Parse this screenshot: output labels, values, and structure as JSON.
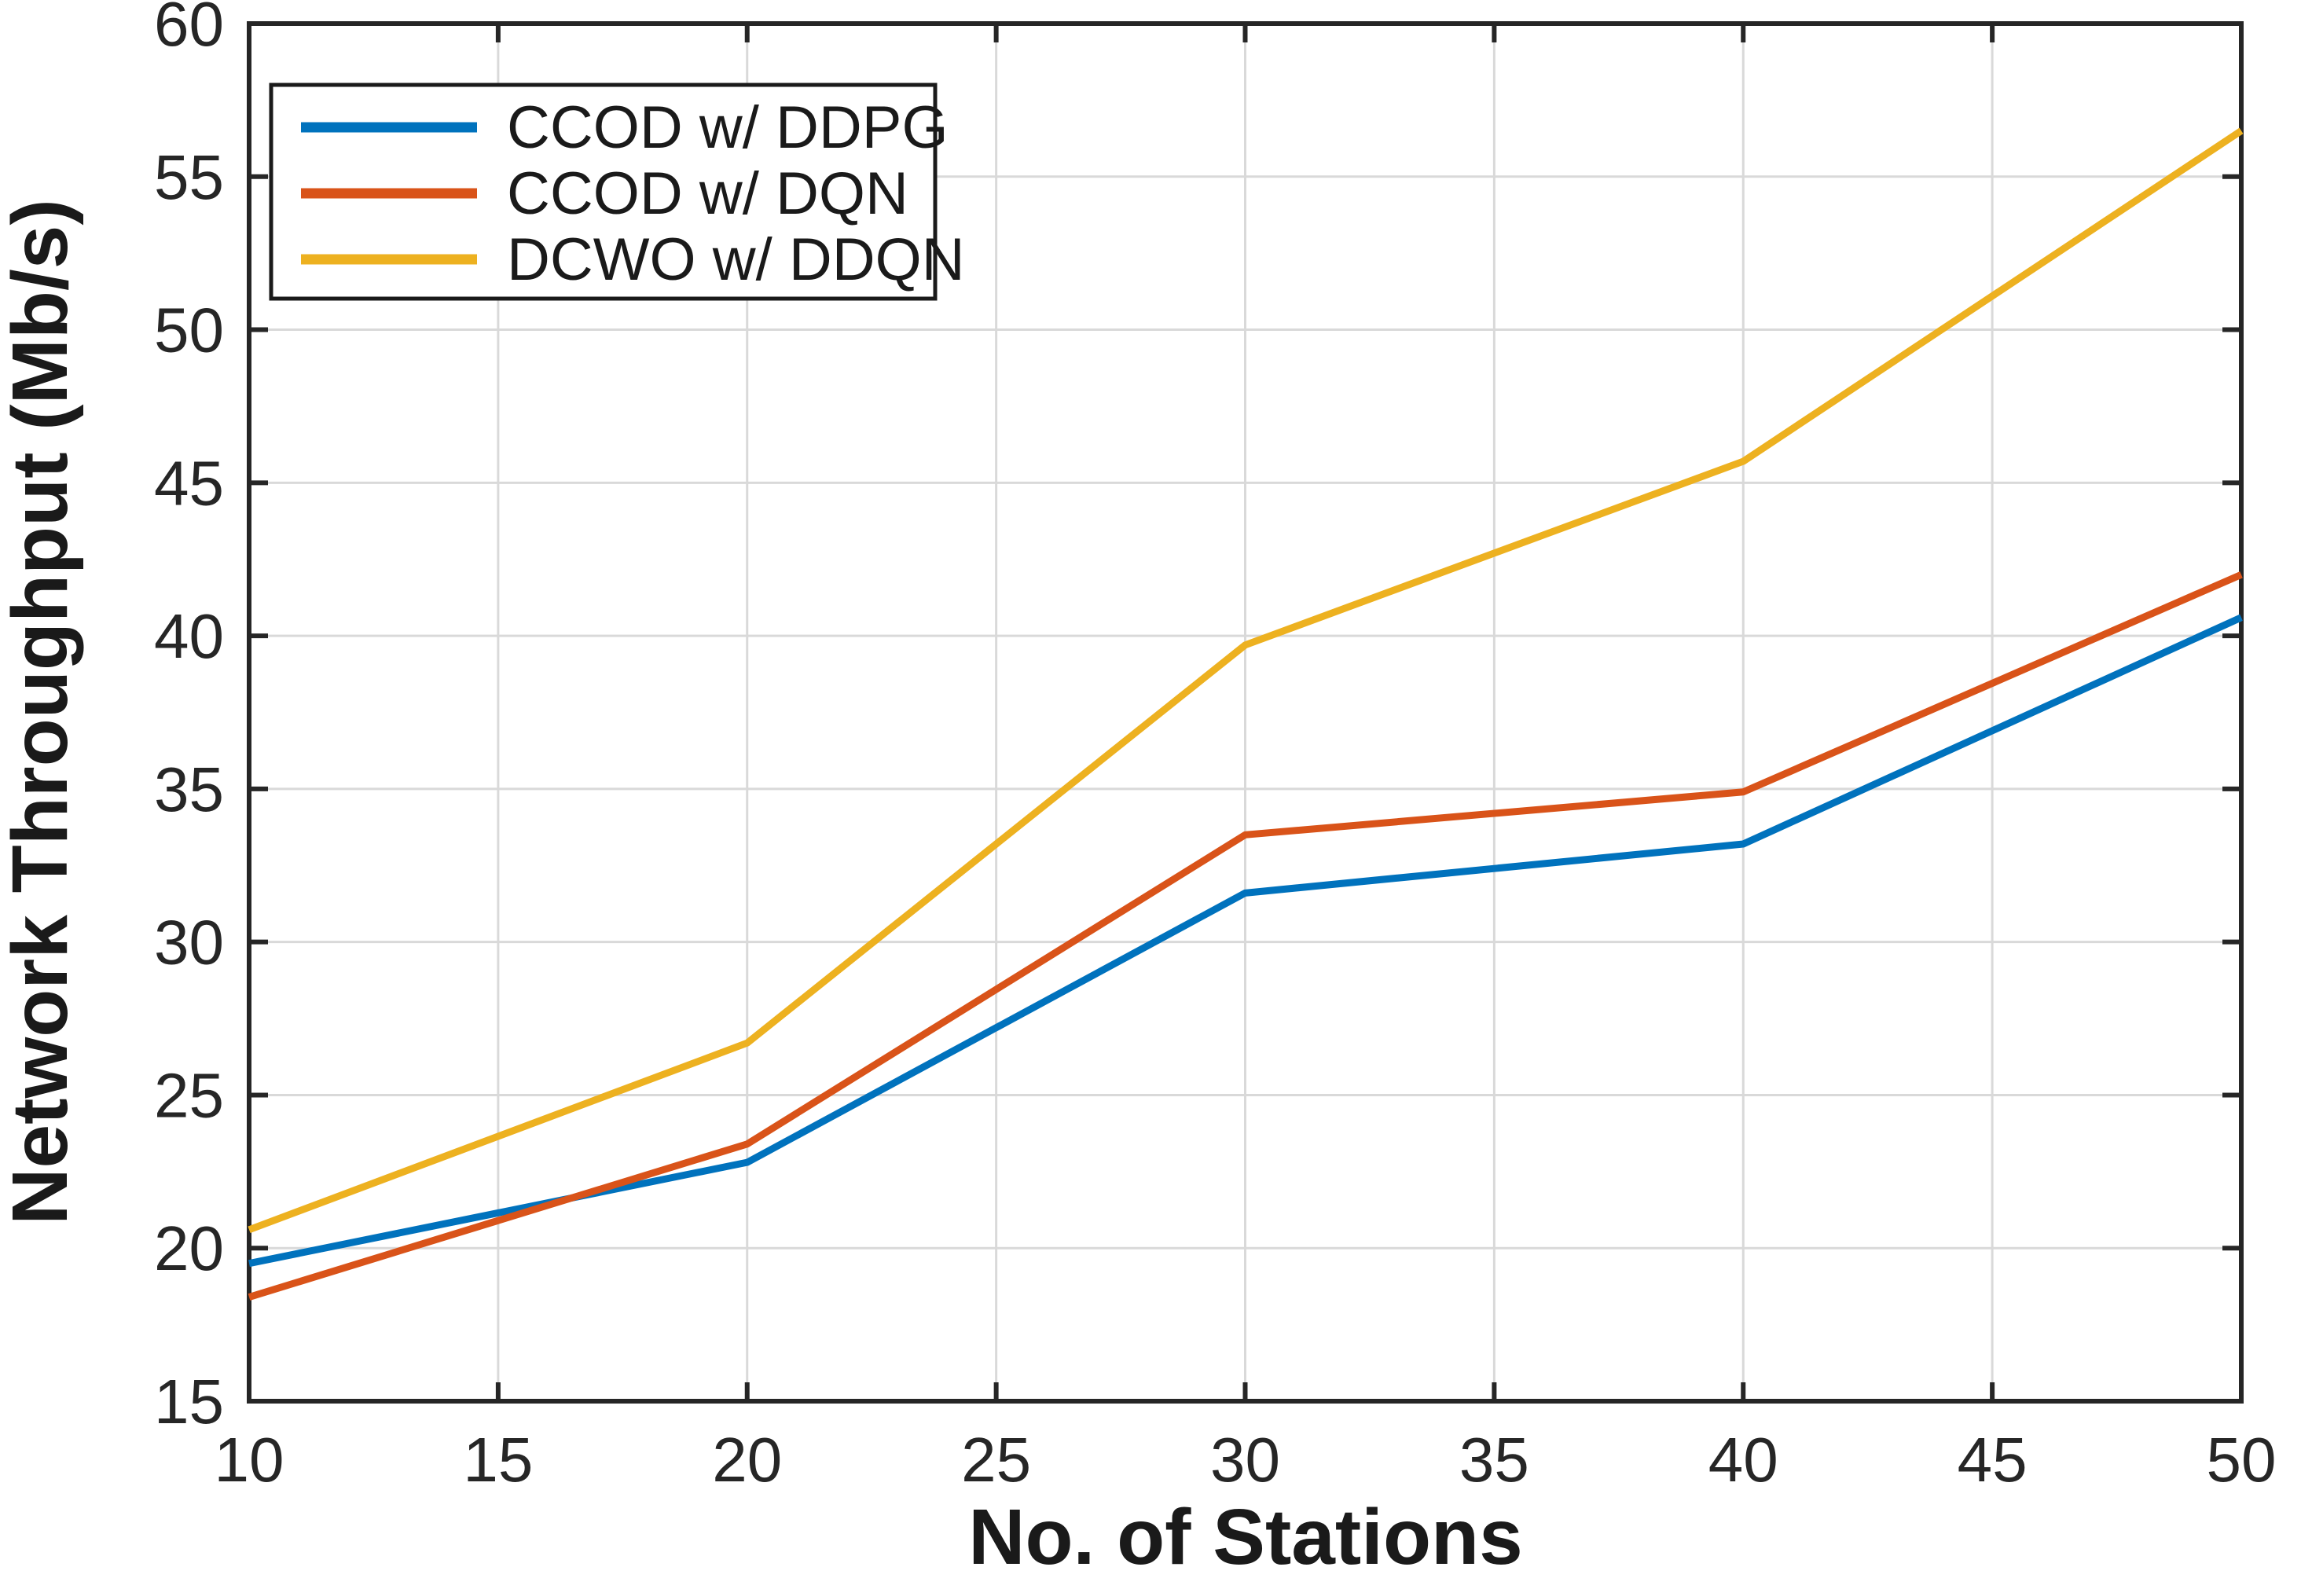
{
  "chart_data": {
    "type": "line",
    "title": "",
    "xlabel": "No. of Stations",
    "ylabel": "Network Throughput (Mb/s)",
    "x": [
      10,
      20,
      30,
      40,
      50
    ],
    "x_ticks": [
      10,
      15,
      20,
      25,
      30,
      35,
      40,
      45,
      50
    ],
    "y_ticks": [
      15,
      20,
      25,
      30,
      35,
      40,
      45,
      50,
      55,
      60
    ],
    "xlim": [
      10,
      50
    ],
    "ylim": [
      15,
      60
    ],
    "grid": true,
    "legend_position": "top-left",
    "axis_color": "#262626",
    "grid_color": "#d9d9d9",
    "background_color": "#ffffff",
    "series": [
      {
        "name": "CCOD w/ DDPG",
        "color": "#0072BD",
        "values": [
          19.5,
          22.8,
          31.6,
          33.2,
          40.6
        ]
      },
      {
        "name": "CCOD w/ DQN",
        "color": "#D95319",
        "values": [
          18.4,
          23.4,
          33.5,
          34.9,
          42.0
        ]
      },
      {
        "name": "DCWO w/ DDQN",
        "color": "#EDB120",
        "values": [
          20.6,
          26.7,
          39.7,
          45.7,
          56.5
        ]
      }
    ]
  }
}
